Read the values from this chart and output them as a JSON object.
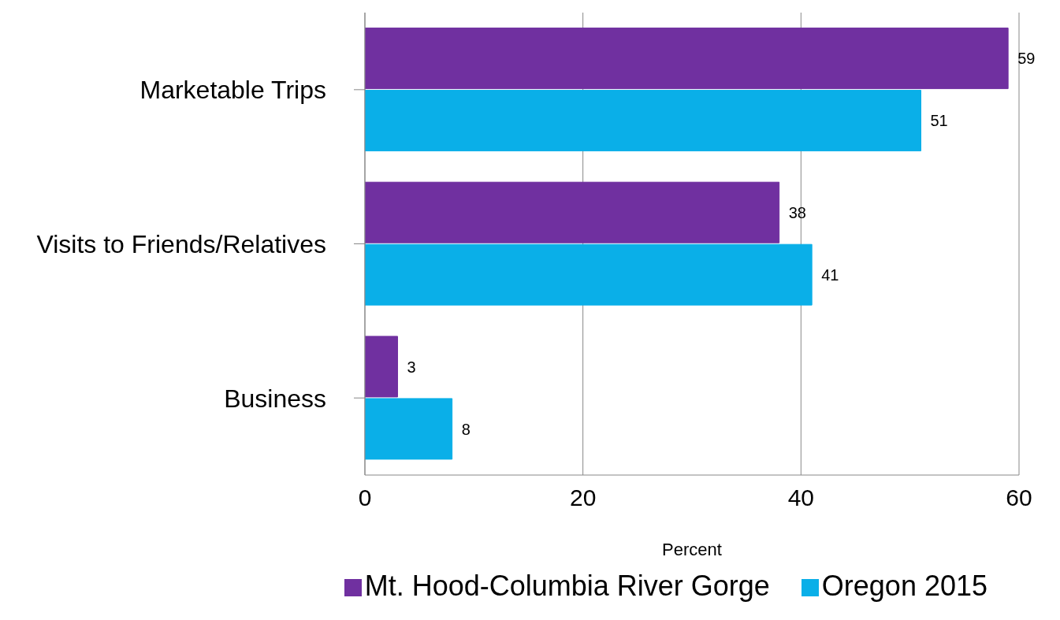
{
  "chart_data": {
    "type": "bar",
    "orientation": "horizontal",
    "categories": [
      "Marketable Trips",
      "Visits to Friends/Relatives",
      "Business"
    ],
    "series": [
      {
        "name": "Mt. Hood-Columbia River Gorge",
        "color": "#7030a0",
        "values": [
          59,
          38,
          3
        ]
      },
      {
        "name": "Oregon 2015",
        "color": "#0aafe8",
        "values": [
          51,
          41,
          8
        ]
      }
    ],
    "xlim": [
      0,
      60
    ],
    "xticks": [
      0,
      20,
      40,
      60
    ],
    "xlabel": "Percent",
    "grid": "x",
    "legend": "bottom",
    "data_labels": true
  }
}
